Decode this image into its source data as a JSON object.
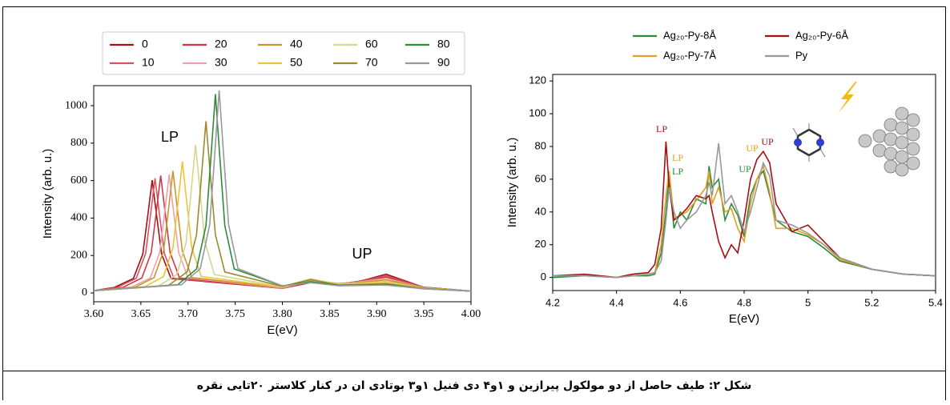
{
  "chart_data": [
    {
      "type": "line",
      "ylabel": "Intensity (arb. u.)",
      "xlabel": "E(eV)",
      "xlim": [
        3.6,
        4.0
      ],
      "ylim": [
        -47,
        1107
      ],
      "xticks": [
        {
          "value": 3.6,
          "label": "3.60"
        },
        {
          "value": 3.65,
          "label": "3.65"
        },
        {
          "value": 3.7,
          "label": "3.70"
        },
        {
          "value": 3.75,
          "label": "3.75"
        },
        {
          "value": 3.8,
          "label": "3.80"
        },
        {
          "value": 3.85,
          "label": "3.85"
        },
        {
          "value": 3.9,
          "label": "3.90"
        },
        {
          "value": 3.95,
          "label": "3.95"
        },
        {
          "value": 4.0,
          "label": "4.00"
        }
      ],
      "yticks": [
        0,
        200,
        400,
        600,
        800,
        1000
      ],
      "annotations": [
        "LP",
        "UP"
      ],
      "series": [
        {
          "name": "0",
          "color": "#a50f15",
          "x": [
            3.6,
            3.622,
            3.642,
            3.652,
            3.657,
            3.662,
            3.667,
            3.672,
            3.682,
            3.8,
            3.83,
            3.86,
            3.88,
            3.91,
            3.95,
            4.0
          ],
          "values": [
            12,
            30,
            77,
            207,
            401,
            602,
            401,
            207,
            77,
            25,
            55,
            45,
            60,
            100,
            30,
            10
          ]
        },
        {
          "name": "10",
          "color": "#d9545f",
          "x": [
            3.6,
            3.625,
            3.645,
            3.655,
            3.66,
            3.665,
            3.67,
            3.675,
            3.685,
            3.8,
            3.83,
            3.86,
            3.88,
            3.91,
            3.95,
            4.0
          ],
          "values": [
            12,
            30,
            78,
            210,
            408,
            612,
            408,
            210,
            78,
            25,
            58,
            48,
            62,
            92,
            30,
            10
          ]
        },
        {
          "name": "20",
          "color": "#cc3a4a",
          "x": [
            3.6,
            3.631,
            3.651,
            3.661,
            3.666,
            3.671,
            3.676,
            3.681,
            3.691,
            3.8,
            3.83,
            3.86,
            3.88,
            3.91,
            3.95,
            4.0
          ],
          "values": [
            12,
            30,
            80,
            215,
            418,
            627,
            418,
            215,
            80,
            25,
            60,
            48,
            60,
            85,
            30,
            10
          ]
        },
        {
          "name": "30",
          "color": "#f0a0a8",
          "x": [
            3.6,
            3.64,
            3.66,
            3.67,
            3.675,
            3.68,
            3.685,
            3.69,
            3.7,
            3.8,
            3.83,
            3.86,
            3.88,
            3.91,
            3.95,
            4.0
          ],
          "values": [
            12,
            31,
            80,
            217,
            421,
            632,
            421,
            217,
            80,
            26,
            65,
            50,
            58,
            78,
            28,
            10
          ]
        },
        {
          "name": "40",
          "color": "#c8962e",
          "x": [
            3.6,
            3.644,
            3.664,
            3.674,
            3.679,
            3.684,
            3.689,
            3.694,
            3.704,
            3.8,
            3.83,
            3.86,
            3.88,
            3.91,
            3.95,
            4.0
          ],
          "values": [
            12,
            31,
            82,
            223,
            434,
            652,
            434,
            223,
            82,
            28,
            70,
            50,
            55,
            70,
            28,
            10
          ]
        },
        {
          "name": "50",
          "color": "#efc23c",
          "x": [
            3.6,
            3.654,
            3.674,
            3.684,
            3.689,
            3.694,
            3.699,
            3.704,
            3.714,
            3.8,
            3.83,
            3.86,
            3.88,
            3.91,
            3.95,
            4.0
          ],
          "values": [
            12,
            33,
            88,
            240,
            467,
            702,
            467,
            240,
            88,
            30,
            72,
            48,
            52,
            62,
            26,
            10
          ]
        },
        {
          "name": "60",
          "color": "#d6d68e",
          "x": [
            3.6,
            3.668,
            3.688,
            3.698,
            3.703,
            3.708,
            3.713,
            3.718,
            3.728,
            3.8,
            3.83,
            3.86,
            3.88,
            3.91,
            3.95,
            4.0
          ],
          "values": [
            12,
            35,
            98,
            269,
            527,
            792,
            527,
            269,
            98,
            32,
            75,
            45,
            48,
            55,
            25,
            10
          ]
        },
        {
          "name": "70",
          "color": "#9c8a2c",
          "x": [
            3.6,
            3.679,
            3.699,
            3.709,
            3.714,
            3.719,
            3.724,
            3.729,
            3.739,
            3.8,
            3.83,
            3.86,
            3.88,
            3.91,
            3.95,
            4.0
          ],
          "values": [
            12,
            39,
            112,
            311,
            609,
            917,
            609,
            311,
            112,
            35,
            72,
            42,
            45,
            50,
            24,
            10
          ]
        },
        {
          "name": "80",
          "color": "#2e8b3a",
          "x": [
            3.6,
            3.689,
            3.709,
            3.719,
            3.724,
            3.729,
            3.734,
            3.739,
            3.749,
            3.8,
            3.83,
            3.86,
            3.88,
            3.91,
            3.95,
            4.0
          ],
          "values": [
            12,
            44,
            128,
            359,
            705,
            1062,
            705,
            359,
            128,
            38,
            60,
            40,
            42,
            45,
            22,
            10
          ]
        },
        {
          "name": "90",
          "color": "#999999",
          "x": [
            3.6,
            3.693,
            3.713,
            3.723,
            3.728,
            3.733,
            3.738,
            3.743,
            3.753,
            3.8,
            3.83,
            3.86,
            3.88,
            3.91,
            3.95,
            4.0
          ],
          "values": [
            12,
            44,
            130,
            365,
            718,
            1082,
            718,
            365,
            130,
            38,
            55,
            38,
            40,
            42,
            22,
            10
          ]
        }
      ]
    },
    {
      "type": "line",
      "ylabel": "Intensity (arb. u.)",
      "xlabel": "E(eV)",
      "xlim": [
        4.2,
        5.4
      ],
      "ylim": [
        -8,
        124
      ],
      "xticks": [
        4.2,
        4.4,
        4.6,
        4.8,
        5,
        5.2,
        5.4
      ],
      "yticks": [
        0,
        20,
        40,
        60,
        80,
        100,
        120
      ],
      "annotations": [
        {
          "text": "LP",
          "color": "#a50f15"
        },
        {
          "text": "LP",
          "color": "#e0a020"
        },
        {
          "text": "LP",
          "color": "#2e8b3a"
        },
        {
          "text": "UP",
          "color": "#e0a020"
        },
        {
          "text": "UP",
          "color": "#a50f15"
        },
        {
          "text": "UP",
          "color": "#2e8b3a"
        }
      ],
      "x": [
        4.2,
        4.3,
        4.4,
        4.45,
        4.5,
        4.52,
        4.54,
        4.555,
        4.565,
        4.58,
        4.6,
        4.62,
        4.65,
        4.68,
        4.69,
        4.7,
        4.72,
        4.74,
        4.76,
        4.78,
        4.8,
        4.82,
        4.84,
        4.86,
        4.88,
        4.9,
        4.95,
        5.0,
        5.05,
        5.1,
        5.2,
        5.3,
        5.4
      ],
      "series": [
        {
          "name": "Ag₂₀-Py-8Å",
          "color": "#2e8b3a",
          "values": [
            0,
            1,
            0,
            1,
            1,
            2,
            15,
            40,
            62,
            30,
            40,
            35,
            48,
            45,
            68,
            55,
            60,
            35,
            45,
            38,
            25,
            50,
            60,
            65,
            50,
            35,
            28,
            25,
            18,
            10,
            5,
            2,
            1
          ]
        },
        {
          "name": "Ag₂₀-Py-7Å",
          "color": "#e0a020",
          "values": [
            1,
            1,
            0,
            1,
            2,
            3,
            20,
            50,
            65,
            36,
            38,
            40,
            47,
            55,
            65,
            45,
            55,
            40,
            42,
            30,
            22,
            45,
            60,
            68,
            52,
            30,
            30,
            26,
            20,
            11,
            5,
            2,
            1
          ]
        },
        {
          "name": "Ag₂₀-Py-6Å",
          "color": "#a50f15",
          "values": [
            1,
            2,
            0,
            2,
            3,
            8,
            30,
            83,
            55,
            35,
            38,
            42,
            50,
            48,
            50,
            40,
            22,
            12,
            20,
            15,
            35,
            60,
            72,
            77,
            70,
            45,
            28,
            32,
            22,
            12,
            5,
            2,
            1
          ]
        },
        {
          "name": "Py",
          "color": "#999999",
          "values": [
            1,
            1,
            0,
            1,
            2,
            3,
            10,
            35,
            55,
            40,
            30,
            35,
            40,
            50,
            58,
            50,
            82,
            45,
            50,
            40,
            28,
            40,
            55,
            70,
            62,
            35,
            32,
            27,
            20,
            12,
            5,
            2,
            1
          ]
        }
      ]
    }
  ],
  "caption": "شکل ۲: طیف حاصل از دو مولکول پیرازین و ۱و۴ دی فنیل ۱و۳ بوتادی ان در کنار کلاستر ۲۰تایی نقره"
}
